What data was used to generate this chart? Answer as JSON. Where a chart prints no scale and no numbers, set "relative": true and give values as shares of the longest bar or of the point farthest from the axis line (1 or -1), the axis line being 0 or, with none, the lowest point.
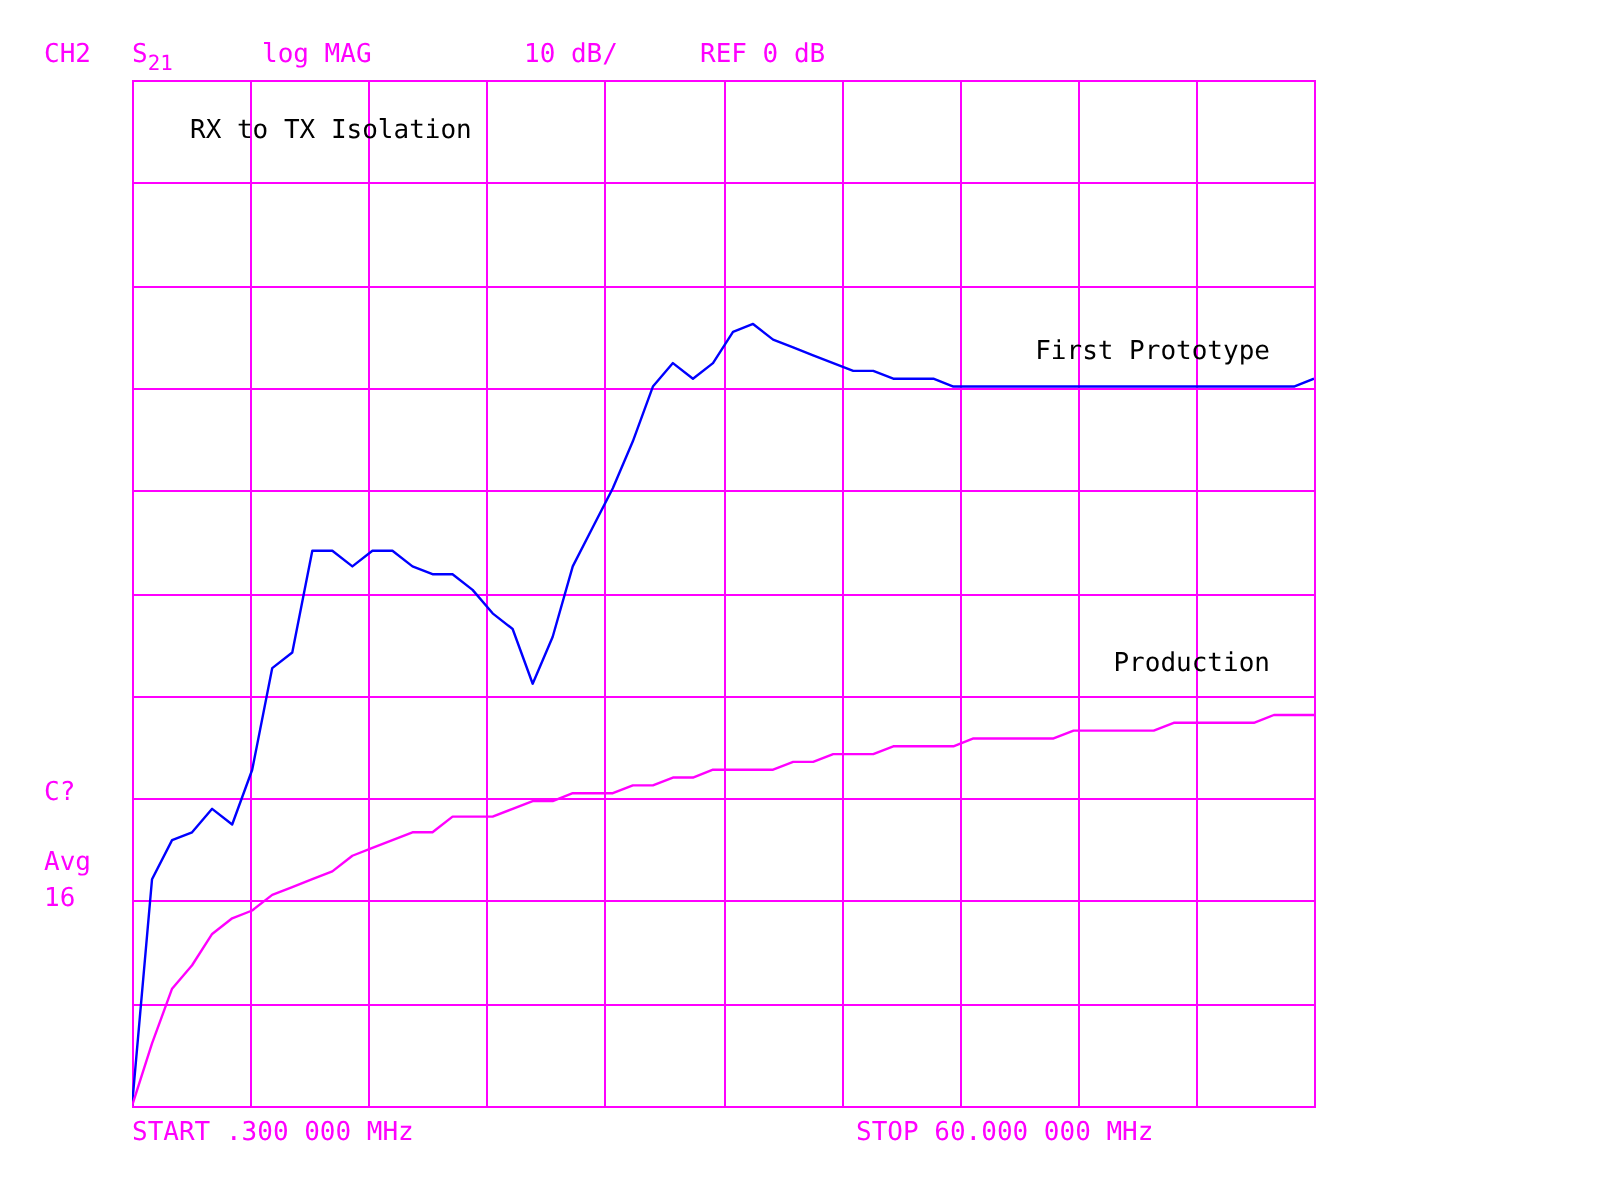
{
  "chart_data": {
    "type": "line",
    "title": "RX to TX Isolation",
    "relative": true,
    "grid": true,
    "categories": [
      null,
      null,
      null,
      null,
      null,
      null,
      null,
      null,
      null,
      null,
      null,
      null,
      null,
      null,
      null,
      null,
      null,
      null,
      null,
      null,
      null,
      null,
      null,
      null,
      null,
      null,
      null,
      null,
      null,
      null,
      null,
      null,
      null,
      null,
      null,
      null,
      null,
      null,
      null,
      null,
      null,
      null,
      null,
      null,
      null,
      null,
      null,
      null,
      null,
      null,
      null,
      null,
      null,
      null,
      null,
      null,
      null,
      null,
      null,
      null
    ],
    "annotations": [
      "CH2",
      "S$_{21}$",
      "log MAG",
      "10 dB/",
      "REF 0 dB",
      "C?",
      "Avg",
      "16",
      "START .300 000 MHz",
      "STOP 60.000 000 MHz"
    ],
    "series": [
      {
        "name": "First Prototype",
        "color": "#0000ff",
        "values": [
          0,
          0.29,
          0.34,
          0.35,
          0.38,
          0.36,
          0.43,
          0.56,
          0.58,
          0.71,
          0.71,
          0.69,
          0.71,
          0.71,
          0.69,
          0.68,
          0.68,
          0.66,
          0.63,
          0.61,
          0.54,
          0.6,
          0.69,
          0.74,
          0.79,
          0.85,
          0.92,
          0.95,
          0.93,
          0.95,
          0.99,
          1,
          0.98,
          0.97,
          0.96,
          0.95,
          0.94,
          0.94,
          0.93,
          0.93,
          0.93,
          0.92,
          0.92,
          0.92,
          0.92,
          0.92,
          0.92,
          0.92,
          0.92,
          0.92,
          0.92,
          0.92,
          0.92,
          0.92,
          0.92,
          0.92,
          0.92,
          0.92,
          0.92,
          0.93
        ]
      },
      {
        "name": "Production",
        "color": "#ff00ff",
        "values": [
          0,
          0.08,
          0.15,
          0.18,
          0.22,
          0.24,
          0.25,
          0.27,
          0.28,
          0.29,
          0.3,
          0.32,
          0.33,
          0.34,
          0.35,
          0.35,
          0.37,
          0.37,
          0.37,
          0.38,
          0.39,
          0.39,
          0.4,
          0.4,
          0.4,
          0.41,
          0.41,
          0.42,
          0.42,
          0.43,
          0.43,
          0.43,
          0.43,
          0.44,
          0.44,
          0.45,
          0.45,
          0.45,
          0.46,
          0.46,
          0.46,
          0.46,
          0.47,
          0.47,
          0.47,
          0.47,
          0.47,
          0.48,
          0.48,
          0.48,
          0.48,
          0.48,
          0.49,
          0.49,
          0.49,
          0.49,
          0.49,
          0.5,
          0.5,
          0.5
        ]
      }
    ]
  }
}
